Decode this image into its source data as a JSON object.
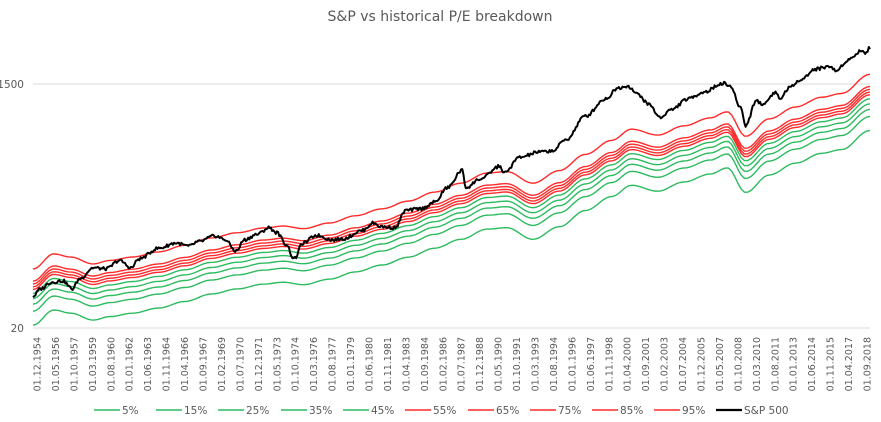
{
  "chart_data": {
    "type": "line",
    "title": "S&P vs historical P/E breakdown",
    "xlabel": "",
    "ylabel": "",
    "y_scale": "log",
    "ylim": [
      20,
      3000
    ],
    "yticks": [
      20,
      1500
    ],
    "grid": "horizontal",
    "legend_position": "bottom",
    "x_range": [
      1954.92,
      2018.67
    ],
    "x_tick_labels": [
      "01.12.1954",
      "01.05.1956",
      "01.10.1957",
      "01.03.1959",
      "01.08.1960",
      "01.01.1962",
      "01.06.1963",
      "01.11.1964",
      "01.04.1966",
      "01.09.1967",
      "01.02.1969",
      "01.07.1970",
      "01.12.1971",
      "01.05.1973",
      "01.10.1974",
      "01.03.1976",
      "01.08.1977",
      "01.01.1979",
      "01.06.1980",
      "01.11.1981",
      "01.04.1983",
      "01.09.1984",
      "01.02.1986",
      "01.07.1987",
      "01.12.1988",
      "01.05.1990",
      "01.10.1991",
      "01.03.1993",
      "01.08.1994",
      "01.01.1996",
      "01.06.1997",
      "01.11.1998",
      "01.04.2000",
      "01.09.2001",
      "01.02.2003",
      "01.07.2004",
      "01.12.2005",
      "01.05.2007",
      "01.10.2008",
      "01.03.2010",
      "01.08.2011",
      "01.01.2013",
      "01.06.2014",
      "01.11.2015",
      "01.04.2017",
      "01.09.2018"
    ],
    "x": [
      1954.92,
      1956.5,
      1957.8,
      1959.5,
      1960.8,
      1962.5,
      1964.5,
      1966.5,
      1968.5,
      1970.5,
      1972.5,
      1974.0,
      1975.5,
      1977.5,
      1979.5,
      1981.5,
      1983.5,
      1985.5,
      1987.5,
      1989.5,
      1991.0,
      1993.0,
      1995.0,
      1997.0,
      1999.0,
      2000.5,
      2002.5,
      2004.5,
      2006.5,
      2007.8,
      2009.2,
      2011.0,
      2013.0,
      2015.0,
      2016.5,
      2018.67
    ],
    "base_series": [
      21.0,
      27.5,
      26.0,
      23.0,
      24.5,
      26.0,
      28.5,
      32.0,
      36.5,
      40.0,
      43.5,
      45.0,
      43.0,
      47.5,
      54.0,
      61.0,
      70.0,
      82.0,
      96.0,
      115.0,
      118.0,
      96.0,
      120.0,
      160.0,
      205.0,
      250.0,
      225.0,
      265.0,
      305.0,
      340.0,
      220.0,
      300.0,
      370.0,
      440.0,
      470.0,
      660.0
    ],
    "band_multipliers": [
      1.0,
      1.28,
      1.45,
      1.6,
      1.75,
      1.88,
      1.97,
      2.07,
      2.18,
      2.7
    ],
    "series": [
      {
        "name": "5%",
        "color": "#2dbb5f"
      },
      {
        "name": "15%",
        "color": "#2dbb5f"
      },
      {
        "name": "25%",
        "color": "#2dbb5f"
      },
      {
        "name": "35%",
        "color": "#2dbb5f"
      },
      {
        "name": "45%",
        "color": "#2dbb5f"
      },
      {
        "name": "55%",
        "color": "#ff2a2a"
      },
      {
        "name": "65%",
        "color": "#ff2a2a"
      },
      {
        "name": "75%",
        "color": "#ff2a2a"
      },
      {
        "name": "85%",
        "color": "#ff2a2a"
      },
      {
        "name": "95%",
        "color": "#ff2a2a"
      },
      {
        "name": "S&P 500",
        "color": "#000000"
      }
    ],
    "sp500": {
      "name": "S&P 500",
      "x": [
        1954.92,
        1955.5,
        1956.3,
        1957.2,
        1957.9,
        1958.5,
        1959.5,
        1960.5,
        1961.5,
        1962.4,
        1963.0,
        1964.5,
        1965.8,
        1966.8,
        1967.5,
        1968.8,
        1969.5,
        1970.4,
        1971.0,
        1972.0,
        1972.9,
        1973.5,
        1974.2,
        1974.8,
        1975.5,
        1976.5,
        1977.8,
        1978.5,
        1980.0,
        1980.8,
        1981.5,
        1982.5,
        1983.3,
        1984.5,
        1985.5,
        1986.5,
        1987.6,
        1987.9,
        1989.0,
        1990.5,
        1990.8,
        1992.0,
        1993.5,
        1994.5,
        1995.5,
        1997.0,
        1998.5,
        1999.5,
        2000.2,
        2001.0,
        2001.8,
        2002.7,
        2003.5,
        2004.8,
        2006.0,
        2007.5,
        2008.0,
        2008.8,
        2009.2,
        2010.0,
        2010.5,
        2011.5,
        2011.8,
        2012.5,
        2013.5,
        2014.5,
        2015.5,
        2016.1,
        2017.0,
        2018.0,
        2018.3,
        2018.67
      ],
      "y": [
        35,
        40,
        45,
        46,
        40,
        48,
        58,
        57,
        66,
        58,
        68,
        82,
        90,
        85,
        92,
        102,
        96,
        78,
        95,
        105,
        118,
        108,
        88,
        68,
        90,
        103,
        95,
        97,
        112,
        128,
        120,
        118,
        160,
        165,
        185,
        240,
        325,
        240,
        280,
        350,
        310,
        410,
        450,
        460,
        560,
        850,
        1150,
        1400,
        1450,
        1250,
        1050,
        830,
        950,
        1150,
        1300,
        1520,
        1450,
        1000,
        720,
        1110,
        1050,
        1300,
        1150,
        1400,
        1650,
        1950,
        2050,
        1900,
        2300,
        2700,
        2600,
        2850
      ]
    }
  },
  "legend": {
    "items": [
      "5%",
      "15%",
      "25%",
      "35%",
      "45%",
      "55%",
      "65%",
      "75%",
      "85%",
      "95%",
      "S&P 500"
    ]
  }
}
